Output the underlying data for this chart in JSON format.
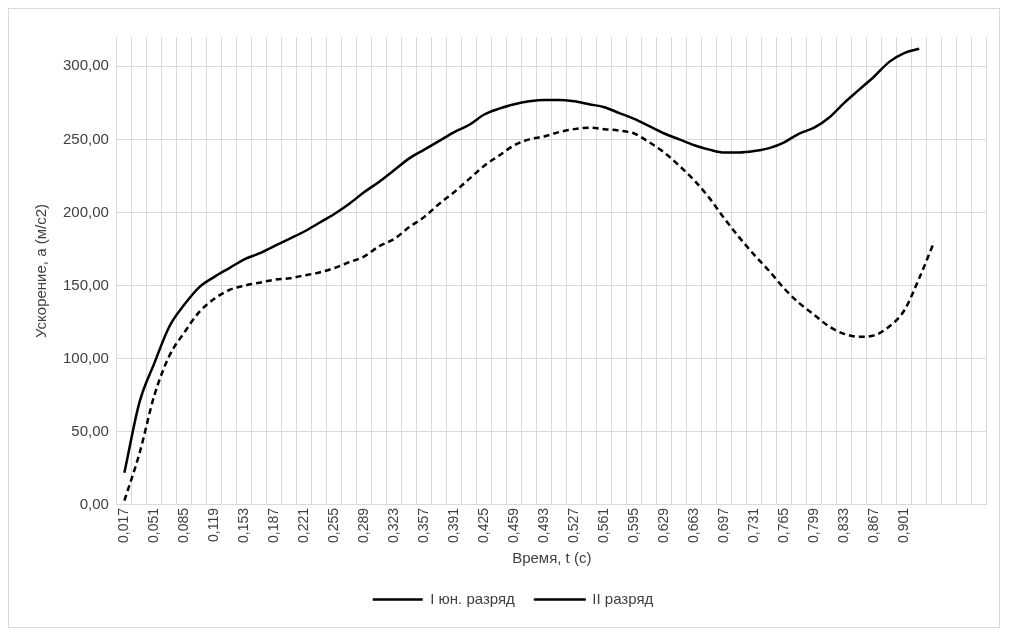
{
  "chart_data": {
    "type": "line",
    "xlabel": "Время, t (с)",
    "ylabel": "Ускорение, a (м/с2)",
    "categories": [
      "0,017",
      null,
      "0,051",
      null,
      "0,085",
      null,
      "0,119",
      null,
      "0,153",
      null,
      "0,187",
      null,
      "0,221",
      null,
      "0,255",
      null,
      "0,289",
      null,
      "0,323",
      null,
      "0,357",
      null,
      "0,391",
      null,
      "0,425",
      null,
      "0,459",
      null,
      "0,493",
      null,
      "0,527",
      null,
      "0,561",
      null,
      "0,595",
      null,
      "0,629",
      null,
      "0,663",
      null,
      "0,697",
      null,
      "0,731",
      null,
      "0,765",
      null,
      "0,799",
      null,
      "0,833",
      null,
      "0,867",
      null,
      "0,901",
      null,
      null,
      null,
      null,
      null
    ],
    "ylim": [
      0,
      320
    ],
    "yticks": [
      {
        "value": 0,
        "label": "0,00"
      },
      {
        "value": 50,
        "label": "50,00"
      },
      {
        "value": 100,
        "label": "100,00"
      },
      {
        "value": 150,
        "label": "150,00"
      },
      {
        "value": 200,
        "label": "200,00"
      },
      {
        "value": 250,
        "label": "250,00"
      },
      {
        "value": 300,
        "label": "300,00"
      }
    ],
    "grid": true,
    "legend": "bottom",
    "marker": "none",
    "series": [
      {
        "name": "I юн. разряд",
        "color": "#000000",
        "line_style": "dashed",
        "values": [
          3,
          35,
          75,
          102,
          118,
          132,
          141,
          147,
          150,
          152,
          154,
          155,
          157,
          159,
          162,
          166,
          170,
          177,
          182,
          190,
          197,
          206,
          214,
          223,
          232,
          239,
          246,
          250,
          252,
          255,
          257,
          258,
          257,
          256,
          254,
          248,
          241,
          232,
          222,
          210,
          196,
          183,
          171,
          160,
          148,
          138,
          130,
          122,
          117,
          115,
          116,
          122,
          133,
          155,
          180,
          null,
          null,
          null
        ]
      },
      {
        "name": "II разряд",
        "color": "#000000",
        "line_style": "solid",
        "values": [
          22,
          70,
          97,
          122,
          137,
          149,
          156,
          162,
          168,
          172,
          177,
          182,
          187,
          193,
          199,
          206,
          214,
          221,
          229,
          237,
          243,
          249,
          255,
          260,
          267,
          271,
          274,
          276,
          277,
          277,
          276,
          274,
          272,
          268,
          264,
          259,
          254,
          250,
          246,
          243,
          241,
          241,
          242,
          244,
          248,
          254,
          258,
          265,
          275,
          284,
          293,
          303,
          309,
          312,
          null,
          null,
          null,
          null
        ]
      }
    ]
  }
}
